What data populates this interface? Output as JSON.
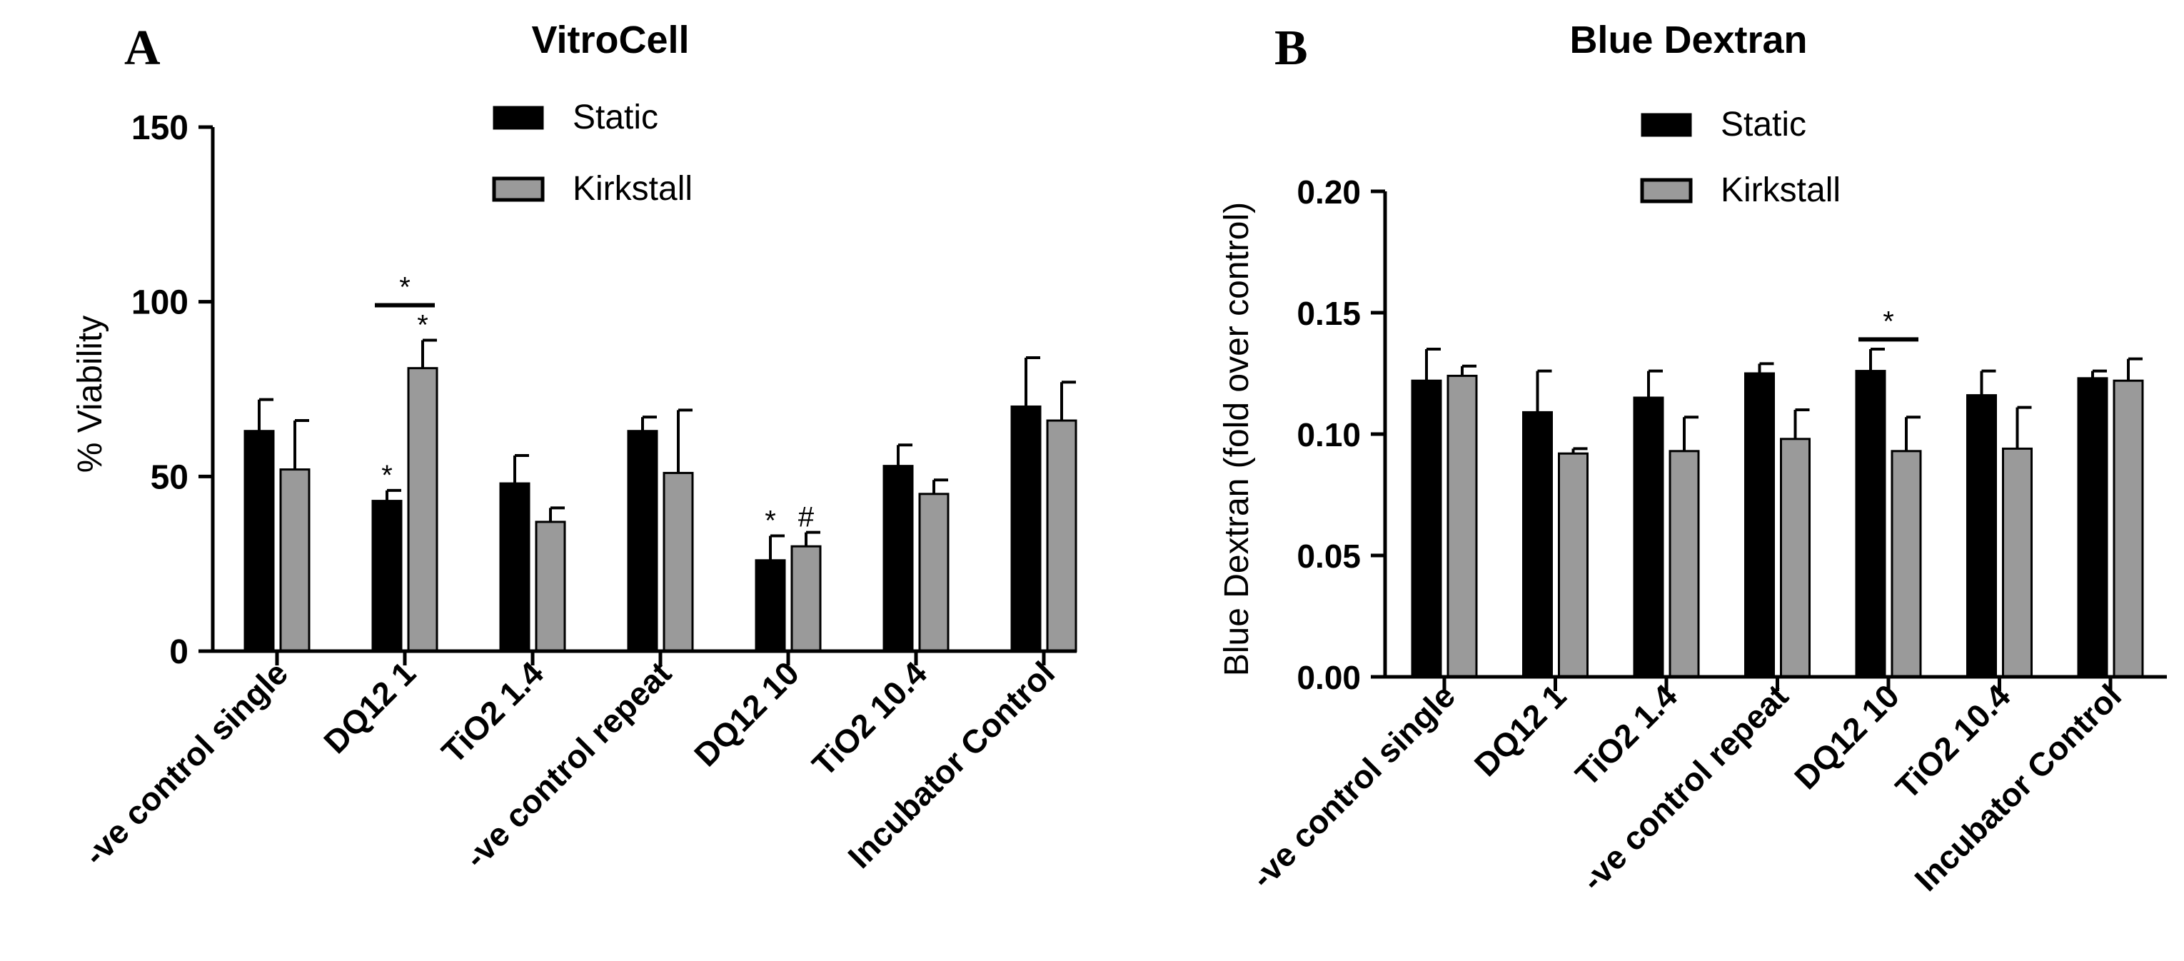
{
  "colors": {
    "static": "#000000",
    "kirkstall": "#9a9a9a",
    "axis": "#000000"
  },
  "chart_data": [
    {
      "panel_label": "A",
      "type": "bar",
      "title": "VitroCell",
      "xlabel": "",
      "ylabel": "% Viability",
      "ylim": [
        0,
        150
      ],
      "yticks": [
        0,
        50,
        100,
        150
      ],
      "ytick_labels": [
        "0",
        "50",
        "100",
        "150"
      ],
      "legend_position": "top-center",
      "categories": [
        "-ve control single",
        "DQ12 1",
        "TiO2 1.4",
        "-ve control repeat",
        "DQ12 10",
        "TiO2 10.4",
        "Incubator Control"
      ],
      "series": [
        {
          "name": "Static",
          "values": [
            63,
            43,
            48,
            63,
            26,
            53,
            70
          ],
          "errors": [
            9,
            3,
            8,
            4,
            7,
            6,
            14
          ]
        },
        {
          "name": "Kirkstall",
          "values": [
            52,
            81,
            37,
            51,
            30,
            45,
            66
          ],
          "errors": [
            14,
            8,
            4,
            18,
            4,
            4,
            11
          ]
        }
      ],
      "annotations": [
        {
          "text": "*",
          "category": "DQ12 1",
          "series": "Static"
        },
        {
          "text": "*",
          "category": "DQ12 1",
          "series": "Kirkstall"
        },
        {
          "text": "*",
          "category": "DQ12 1",
          "type": "bracket",
          "y": 99
        },
        {
          "text": "*",
          "category": "DQ12 10",
          "series": "Static"
        },
        {
          "text": "#",
          "category": "DQ12 10",
          "series": "Kirkstall"
        }
      ]
    },
    {
      "panel_label": "B",
      "type": "bar",
      "title": "Blue Dextran",
      "xlabel": "",
      "ylabel": "Blue Dextran (fold over control)",
      "ylim": [
        0,
        0.2
      ],
      "yticks": [
        0,
        0.05,
        0.1,
        0.15,
        0.2
      ],
      "ytick_labels": [
        "0.00",
        "0.05",
        "0.10",
        "0.15",
        "0.20"
      ],
      "legend_position": "top-center",
      "categories": [
        "-ve control single",
        "DQ12 1",
        "TiO2 1.4",
        "-ve control repeat",
        "DQ12 10",
        "TiO2 10.4",
        "Incubator Control"
      ],
      "series": [
        {
          "name": "Static",
          "values": [
            0.122,
            0.109,
            0.115,
            0.125,
            0.126,
            0.116,
            0.123
          ],
          "errors": [
            0.013,
            0.017,
            0.011,
            0.004,
            0.009,
            0.01,
            0.003
          ]
        },
        {
          "name": "Kirkstall",
          "values": [
            0.124,
            0.092,
            0.093,
            0.098,
            0.093,
            0.094,
            0.122
          ],
          "errors": [
            0.004,
            0.002,
            0.014,
            0.012,
            0.014,
            0.017,
            0.009
          ]
        }
      ],
      "annotations": [
        {
          "text": "*",
          "category": "DQ12 10",
          "type": "bracket",
          "y": 0.139
        }
      ]
    }
  ]
}
